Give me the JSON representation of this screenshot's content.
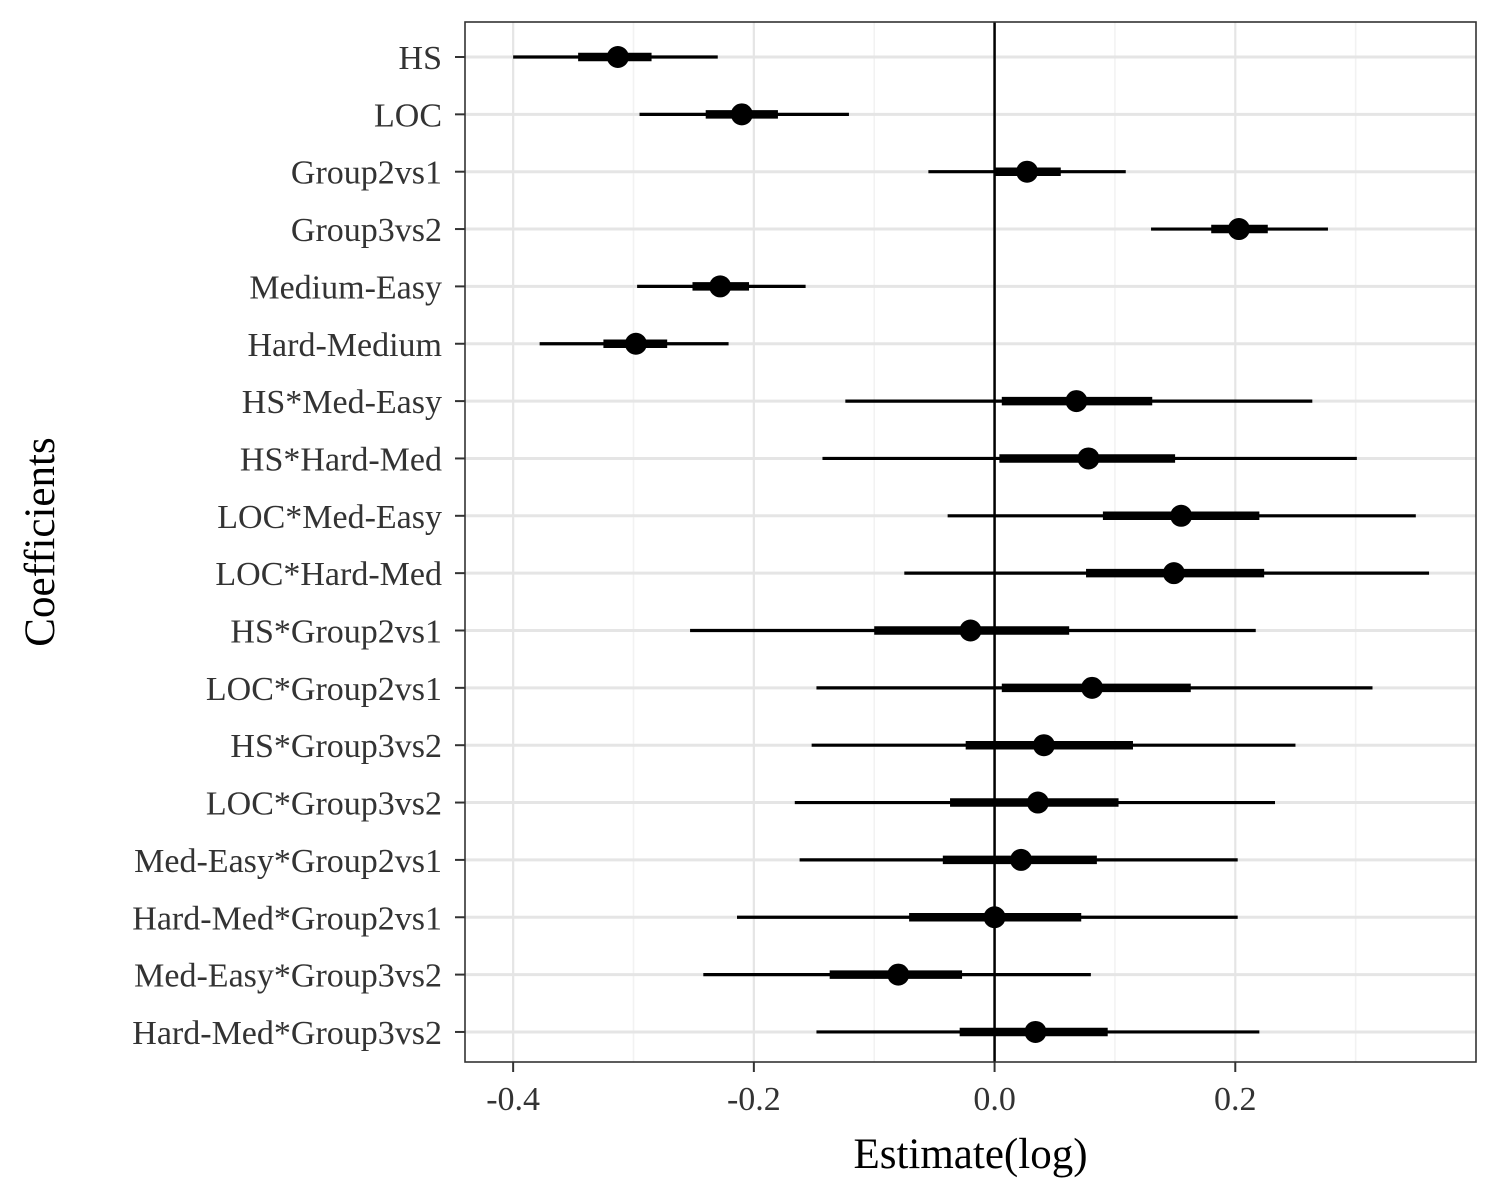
{
  "chart_data": {
    "type": "scatter",
    "subtype": "coefficient-interval-plot",
    "xlabel": "Estimate(log)",
    "ylabel": "Coefficients",
    "xlim": [
      -0.44,
      0.4
    ],
    "x_ticks": [
      -0.4,
      -0.2,
      0.0,
      0.2
    ],
    "x_tick_labels": [
      "-0.4",
      "-0.2",
      "0.0",
      "0.2"
    ],
    "reference_line": 0.0,
    "grid": true,
    "theme": "bw",
    "colors": {
      "points": "#000000",
      "intervals": "#000000",
      "grid_major": "#e5e5e5",
      "grid_minor": "#f2f2f2",
      "panel_border": "#333333"
    },
    "coefficients": [
      {
        "label": "HS",
        "estimate": -0.313,
        "inner": [
          -0.346,
          -0.285
        ],
        "outer": [
          -0.4,
          -0.23
        ]
      },
      {
        "label": "LOC",
        "estimate": -0.21,
        "inner": [
          -0.24,
          -0.18
        ],
        "outer": [
          -0.295,
          -0.121
        ]
      },
      {
        "label": "Group2vs1",
        "estimate": 0.027,
        "inner": [
          0.0,
          0.055
        ],
        "outer": [
          -0.055,
          0.109
        ]
      },
      {
        "label": "Group3vs2",
        "estimate": 0.203,
        "inner": [
          0.18,
          0.227
        ],
        "outer": [
          0.13,
          0.277
        ]
      },
      {
        "label": "Medium-Easy",
        "estimate": -0.228,
        "inner": [
          -0.251,
          -0.204
        ],
        "outer": [
          -0.297,
          -0.157
        ]
      },
      {
        "label": "Hard-Medium",
        "estimate": -0.298,
        "inner": [
          -0.325,
          -0.272
        ],
        "outer": [
          -0.378,
          -0.221
        ]
      },
      {
        "label": "HS*Med-Easy",
        "estimate": 0.068,
        "inner": [
          0.006,
          0.131
        ],
        "outer": [
          -0.124,
          0.264
        ]
      },
      {
        "label": "HS*Hard-Med",
        "estimate": 0.078,
        "inner": [
          0.004,
          0.15
        ],
        "outer": [
          -0.143,
          0.301
        ]
      },
      {
        "label": "LOC*Med-Easy",
        "estimate": 0.155,
        "inner": [
          0.09,
          0.22
        ],
        "outer": [
          -0.039,
          0.35
        ]
      },
      {
        "label": "LOC*Hard-Med",
        "estimate": 0.149,
        "inner": [
          0.076,
          0.224
        ],
        "outer": [
          -0.075,
          0.361
        ]
      },
      {
        "label": "HS*Group2vs1",
        "estimate": -0.02,
        "inner": [
          -0.1,
          0.062
        ],
        "outer": [
          -0.253,
          0.217
        ]
      },
      {
        "label": "LOC*Group2vs1",
        "estimate": 0.081,
        "inner": [
          0.006,
          0.163
        ],
        "outer": [
          -0.148,
          0.314
        ]
      },
      {
        "label": "HS*Group3vs2",
        "estimate": 0.041,
        "inner": [
          -0.024,
          0.115
        ],
        "outer": [
          -0.152,
          0.25
        ]
      },
      {
        "label": "LOC*Group3vs2",
        "estimate": 0.036,
        "inner": [
          -0.037,
          0.103
        ],
        "outer": [
          -0.166,
          0.233
        ]
      },
      {
        "label": "Med-Easy*Group2vs1",
        "estimate": 0.022,
        "inner": [
          -0.043,
          0.085
        ],
        "outer": [
          -0.162,
          0.202
        ]
      },
      {
        "label": "Hard-Med*Group2vs1",
        "estimate": 0.0,
        "inner": [
          -0.071,
          0.072
        ],
        "outer": [
          -0.214,
          0.202
        ]
      },
      {
        "label": "Med-Easy*Group3vs2",
        "estimate": -0.08,
        "inner": [
          -0.137,
          -0.027
        ],
        "outer": [
          -0.242,
          0.08
        ]
      },
      {
        "label": "Hard-Med*Group3vs2",
        "estimate": 0.034,
        "inner": [
          -0.029,
          0.094
        ],
        "outer": [
          -0.148,
          0.22
        ]
      }
    ]
  }
}
